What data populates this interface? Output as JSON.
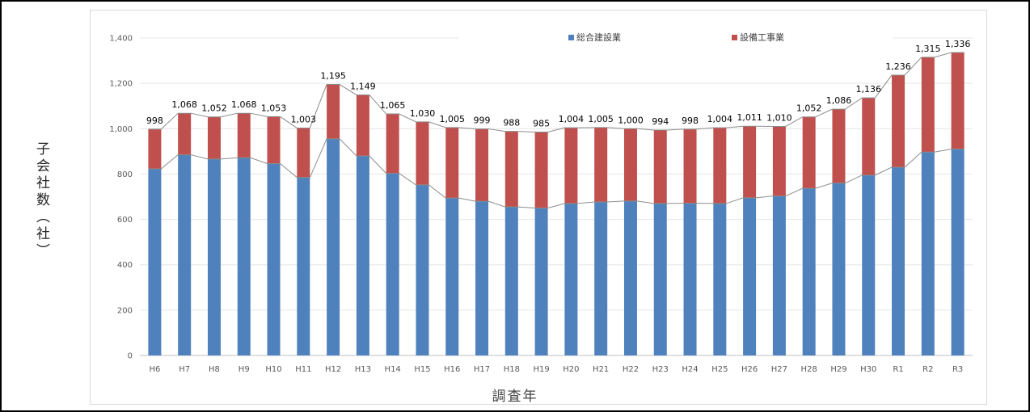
{
  "chart_data": {
    "type": "bar",
    "stacked": true,
    "title": "",
    "xlabel": "調査年",
    "ylabel": "子会社数（社）",
    "ylim": [
      0,
      1400
    ],
    "yticks": [
      0,
      200,
      400,
      600,
      800,
      1000,
      1200,
      1400
    ],
    "ytick_labels": [
      "0",
      "200",
      "400",
      "600",
      "800",
      "1,000",
      "1,200",
      "1,400"
    ],
    "grid": true,
    "legend_position": "top",
    "categories": [
      "H6",
      "H7",
      "H8",
      "H9",
      "H10",
      "H11",
      "H12",
      "H13",
      "H14",
      "H15",
      "H16",
      "H17",
      "H18",
      "H19",
      "H20",
      "H21",
      "H22",
      "H23",
      "H24",
      "H25",
      "H26",
      "H27",
      "H28",
      "H29",
      "H30",
      "R1",
      "R2",
      "R3"
    ],
    "series": [
      {
        "name": "総合建設業",
        "color": "#4f81bd",
        "values": [
          823,
          885,
          866,
          872,
          846,
          785,
          955,
          880,
          803,
          752,
          694,
          680,
          655,
          650,
          670,
          677,
          681,
          670,
          671,
          670,
          695,
          703,
          737,
          760,
          795,
          830,
          897,
          910
        ]
      },
      {
        "name": "設備工事業",
        "color": "#c0504d",
        "values": [
          175,
          183,
          186,
          196,
          207,
          218,
          240,
          269,
          262,
          278,
          311,
          319,
          333,
          335,
          334,
          328,
          319,
          324,
          327,
          334,
          316,
          307,
          315,
          326,
          341,
          406,
          418,
          426
        ]
      }
    ],
    "totals": [
      998,
      1068,
      1052,
      1068,
      1053,
      1003,
      1195,
      1149,
      1065,
      1030,
      1005,
      999,
      988,
      985,
      1004,
      1005,
      1000,
      994,
      998,
      1004,
      1011,
      1010,
      1052,
      1086,
      1136,
      1236,
      1315,
      1336
    ],
    "total_labels": [
      "998",
      "1,068",
      "1,052",
      "1,068",
      "1,053",
      "1,003",
      "1,195",
      "1,149",
      "1,065",
      "1,030",
      "1,005",
      "999",
      "988",
      "985",
      "1,004",
      "1,005",
      "1,000",
      "994",
      "998",
      "1,004",
      "1,011",
      "1,010",
      "1,052",
      "1,086",
      "1,136",
      "1,236",
      "1,315",
      "1,336"
    ]
  }
}
